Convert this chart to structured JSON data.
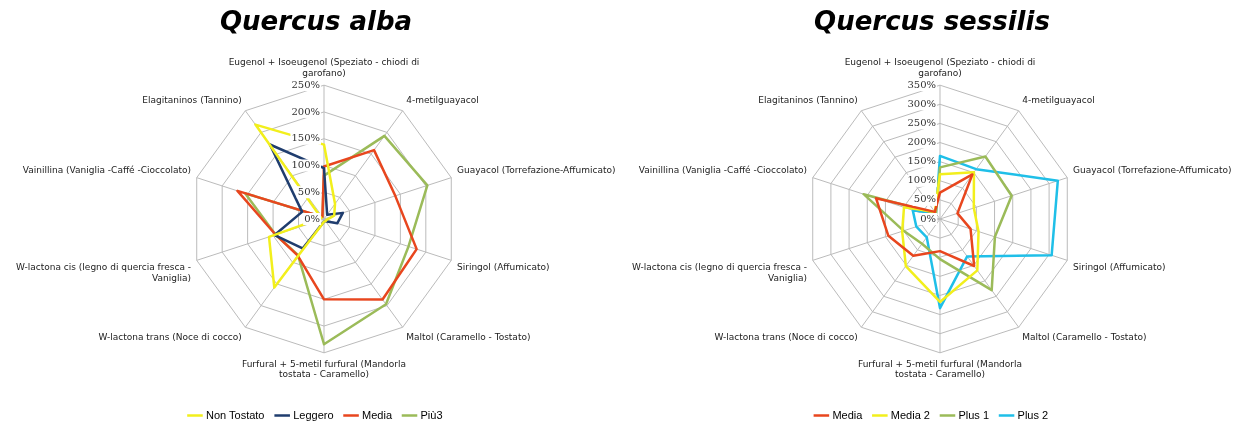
{
  "chart_data": [
    {
      "type": "radar",
      "title": "Quercus alba",
      "categories": [
        "Eugenol + Isoeugenol (Speziato - chiodi di garofano)",
        "4-metilguayacol",
        "Guayacol (Torrefazione-Affumicato)",
        "Siringol (Affumicato)",
        "Maltol (Caramello - Tostato)",
        "Furfural + 5-metil furfural (Mandorla tostata - Caramello)",
        "W-lactona trans (Noce di cocco)",
        "W-lactona cis (legno di quercia fresca - Vaniglia)",
        "Vainillina (Vaniglia -Caffé -Cioccolato)",
        "Elagitaninos (Tannino)"
      ],
      "series": [
        {
          "name": "Non Tostato",
          "color": "#f2ef1c",
          "values": [
            139,
            35,
            20,
            5,
            5,
            5,
            158,
            108,
            5,
            218
          ]
        },
        {
          "name": "Leggero",
          "color": "#1f3d6e",
          "values": [
            95,
            10,
            37,
            26,
            5,
            5,
            68,
            97,
            43,
            172
          ]
        },
        {
          "name": "Media",
          "color": "#e8461e",
          "values": [
            98,
            159,
            140,
            182,
            186,
            150,
            84,
            95,
            170,
            5
          ]
        },
        {
          "name": "Più3",
          "color": "#9bbb59",
          "values": [
            81,
            192,
            203,
            166,
            197,
            234,
            83,
            95,
            155,
            5
          ]
        }
      ],
      "ylim": [
        0,
        250
      ],
      "yticks": [
        {
          "value": 0,
          "label": "0%"
        },
        {
          "value": 50,
          "label": "50%"
        },
        {
          "value": 100,
          "label": "100%"
        },
        {
          "value": 150,
          "label": "150%"
        },
        {
          "value": 200,
          "label": "200%"
        },
        {
          "value": 250,
          "label": "250%"
        }
      ],
      "grid": true,
      "legend": "bottom",
      "marker": "none",
      "line_style": "solid"
    },
    {
      "type": "radar",
      "title": "Quercus sessilis",
      "categories": [
        "Eugenol + Isoeugenol (Speziato - chiodi di garofano)",
        "4-metilguayacol",
        "Guayacol (Torrefazione-Affumicato)",
        "Siringol (Affumicato)",
        "Maltol (Caramello - Tostato)",
        "Furfural + 5-metil furfural (Mandorla tostata - Caramello)",
        "W-lactona trans (Noce di cocco)",
        "W-lactona cis (legno di quercia fresca - Vaniglia)",
        "Vainillina (Vaniglia -Caffé -Cioccolato)",
        "Elagitaninos (Tannino)"
      ],
      "series": [
        {
          "name": "Media",
          "color": "#e8461e",
          "values": [
            69,
            144,
            48,
            84,
            152,
            84,
            119,
            142,
            176,
            23
          ]
        },
        {
          "name": "Media 2",
          "color": "#f2ef1c",
          "values": [
            117,
            151,
            93,
            106,
            166,
            217,
            152,
            104,
            99,
            23
          ]
        },
        {
          "name": "Plus 1",
          "color": "#9bbb59",
          "values": [
            135,
            202,
            197,
            151,
            230,
            105,
            80,
            100,
            210,
            18
          ]
        },
        {
          "name": "Plus 2",
          "color": "#1fbfe8",
          "values": [
            165,
            161,
            324,
            307,
            121,
            233,
            59,
            65,
            75,
            18
          ]
        }
      ],
      "ylim": [
        0,
        350
      ],
      "yticks": [
        {
          "value": 0,
          "label": "0%"
        },
        {
          "value": 50,
          "label": "50%"
        },
        {
          "value": 100,
          "label": "100%"
        },
        {
          "value": 150,
          "label": "150%"
        },
        {
          "value": 200,
          "label": "200%"
        },
        {
          "value": 250,
          "label": "250%"
        },
        {
          "value": 300,
          "label": "300%"
        },
        {
          "value": 350,
          "label": "350%"
        }
      ],
      "grid": true,
      "legend": "bottom",
      "marker": "none",
      "line_style": "solid"
    }
  ]
}
